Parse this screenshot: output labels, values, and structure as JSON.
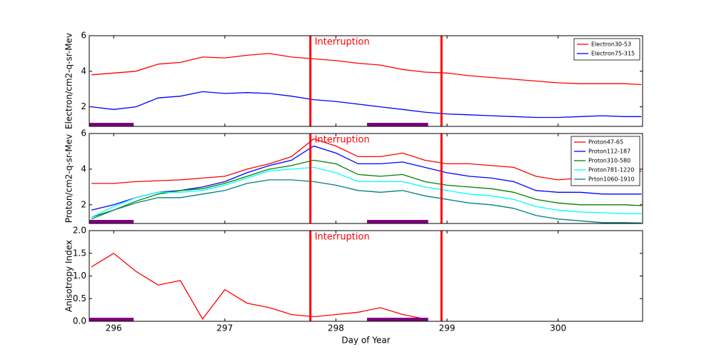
{
  "chart_data": [
    {
      "type": "line",
      "ylabel": "Electron/cm2-q-sr-Mev",
      "x": [
        295.8,
        296.0,
        296.2,
        296.4,
        296.6,
        296.8,
        297.0,
        297.2,
        297.4,
        297.6,
        297.8,
        298.0,
        298.2,
        298.4,
        298.6,
        298.8,
        299.0,
        299.2,
        299.4,
        299.6,
        299.8,
        300.0,
        300.2,
        300.4,
        300.6,
        300.75
      ],
      "series": [
        {
          "name": "Electron30-53",
          "color": "#ff0000",
          "values": [
            3.8,
            3.9,
            4.0,
            4.4,
            4.5,
            4.8,
            4.75,
            4.9,
            5.0,
            4.8,
            4.7,
            4.6,
            4.45,
            4.35,
            4.1,
            3.95,
            3.9,
            3.75,
            3.65,
            3.55,
            3.45,
            3.35,
            3.3,
            3.3,
            3.3,
            3.25
          ]
        },
        {
          "name": "Electron75-315",
          "color": "#0000ff",
          "values": [
            2.0,
            1.85,
            2.0,
            2.5,
            2.6,
            2.85,
            2.75,
            2.8,
            2.75,
            2.6,
            2.4,
            2.3,
            2.15,
            2.0,
            1.85,
            1.7,
            1.6,
            1.55,
            1.5,
            1.45,
            1.4,
            1.4,
            1.45,
            1.5,
            1.45,
            1.45
          ]
        }
      ],
      "xlim": [
        295.78,
        300.76
      ],
      "xticks": [
        296,
        297,
        298,
        299,
        300
      ],
      "ylim": [
        0.9,
        6
      ],
      "yticks": [
        2,
        4,
        6
      ],
      "vlines": [
        297.77,
        298.95
      ],
      "vline_color": "#ff0000",
      "annotation": "Interruption",
      "spans": [
        [
          295.78,
          296.18
        ],
        [
          298.28,
          298.83
        ]
      ],
      "span_color": "#800080",
      "legend": "upper right"
    },
    {
      "type": "line",
      "ylabel": "Proton/cm2-q-sr-Mev",
      "x": [
        295.8,
        296.0,
        296.2,
        296.4,
        296.6,
        296.8,
        297.0,
        297.2,
        297.4,
        297.6,
        297.8,
        298.0,
        298.2,
        298.4,
        298.6,
        298.8,
        299.0,
        299.2,
        299.4,
        299.6,
        299.8,
        300.0,
        300.2,
        300.4,
        300.6,
        300.75
      ],
      "series": [
        {
          "name": "Proton47-65",
          "color": "#ff0000",
          "values": [
            3.2,
            3.2,
            3.3,
            3.35,
            3.4,
            3.5,
            3.6,
            4.0,
            4.3,
            4.7,
            5.7,
            5.3,
            4.7,
            4.7,
            4.9,
            4.5,
            4.3,
            4.3,
            4.2,
            4.1,
            3.6,
            3.4,
            3.5,
            3.5,
            3.5,
            3.9
          ]
        },
        {
          "name": "Proton112-187",
          "color": "#0000ff",
          "values": [
            1.7,
            2.0,
            2.4,
            2.7,
            2.8,
            3.0,
            3.3,
            3.8,
            4.2,
            4.5,
            5.3,
            4.9,
            4.3,
            4.3,
            4.4,
            4.1,
            3.8,
            3.6,
            3.5,
            3.3,
            2.8,
            2.7,
            2.7,
            2.6,
            2.6,
            2.6
          ]
        },
        {
          "name": "Proton310-580",
          "color": "#008000",
          "values": [
            1.3,
            1.7,
            2.2,
            2.6,
            2.8,
            2.9,
            3.2,
            3.6,
            4.0,
            4.2,
            4.5,
            4.3,
            3.7,
            3.6,
            3.7,
            3.3,
            3.1,
            3.0,
            2.9,
            2.7,
            2.3,
            2.1,
            2.0,
            2.0,
            2.0,
            1.95
          ]
        },
        {
          "name": "Proton781-1220",
          "color": "#00ffff",
          "values": [
            1.3,
            1.9,
            2.4,
            2.7,
            2.7,
            2.8,
            3.1,
            3.5,
            3.9,
            4.0,
            4.1,
            3.8,
            3.3,
            3.3,
            3.3,
            3.0,
            2.8,
            2.6,
            2.5,
            2.3,
            1.9,
            1.7,
            1.6,
            1.55,
            1.5,
            1.5
          ]
        },
        {
          "name": "Prton1060-1910",
          "color": "#008080",
          "values": [
            1.2,
            1.7,
            2.1,
            2.4,
            2.4,
            2.6,
            2.8,
            3.2,
            3.4,
            3.4,
            3.3,
            3.1,
            2.8,
            2.7,
            2.8,
            2.5,
            2.3,
            2.1,
            2.0,
            1.8,
            1.4,
            1.2,
            1.1,
            1.0,
            1.0,
            0.98
          ]
        }
      ],
      "xlim": [
        295.78,
        300.76
      ],
      "xticks": [
        296,
        297,
        298,
        299,
        300
      ],
      "ylim": [
        0.95,
        6
      ],
      "yticks": [
        2,
        4,
        6
      ],
      "vlines": [
        297.77,
        298.95
      ],
      "vline_color": "#ff0000",
      "annotation": "Interruption",
      "spans": [
        [
          295.78,
          296.18
        ],
        [
          298.28,
          298.83
        ]
      ],
      "span_color": "#800080",
      "legend": "upper right"
    },
    {
      "type": "line",
      "ylabel": "Anisotropy Index",
      "xlabel": "Day of Year",
      "x": [
        295.8,
        296.0,
        296.2,
        296.4,
        296.6,
        296.8,
        297.0,
        297.2,
        297.4,
        297.6,
        297.8,
        298.0,
        298.2,
        298.4,
        298.6,
        298.8,
        299.0,
        299.2,
        299.4,
        299.6,
        299.8,
        300.0,
        300.2,
        300.4,
        300.6,
        300.75
      ],
      "series": [
        {
          "color": "#ff0000",
          "values": [
            1.2,
            1.5,
            1.1,
            0.8,
            0.9,
            0.05,
            0.7,
            0.4,
            0.3,
            0.15,
            0.1,
            0.15,
            0.2,
            0.3,
            0.15,
            0.05,
            null,
            null,
            null,
            null,
            null,
            null,
            null,
            null,
            null,
            null
          ]
        }
      ],
      "xlim": [
        295.78,
        300.76
      ],
      "xticks": [
        296,
        297,
        298,
        299,
        300
      ],
      "ylim": [
        0,
        2
      ],
      "yticks": [
        {
          "value": 0,
          "label": "0.0"
        },
        0.5,
        {
          "value": 1,
          "label": "1.0"
        },
        1.5,
        {
          "value": 2,
          "label": "2.0"
        }
      ],
      "vlines": [
        297.77,
        298.95
      ],
      "vline_color": "#ff0000",
      "annotation": "Interruption",
      "spans": [
        [
          295.78,
          296.18
        ],
        [
          298.28,
          298.83
        ]
      ],
      "span_color": "#800080"
    }
  ]
}
